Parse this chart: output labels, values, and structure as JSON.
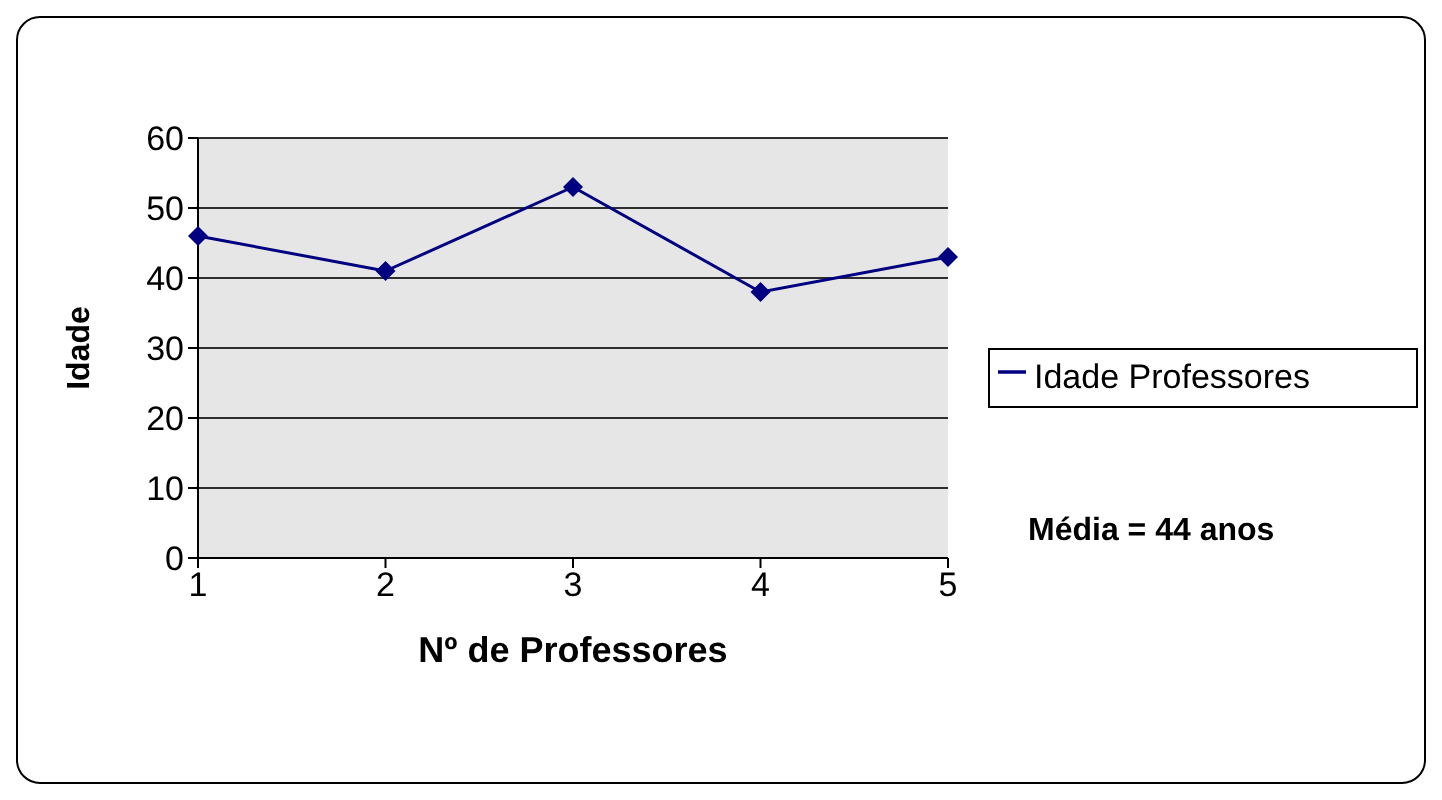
{
  "chart_data": {
    "type": "line",
    "xlabel": "Nº de Professores",
    "ylabel": "Idade",
    "categories": [
      "1",
      "2",
      "3",
      "4",
      "5"
    ],
    "series": [
      {
        "name": "Idade Professores",
        "color": "#000080",
        "values": [
          46,
          41,
          53,
          38,
          43
        ]
      }
    ],
    "ylim": [
      0,
      60
    ],
    "yticks": [
      0,
      10,
      20,
      30,
      40,
      50,
      60
    ],
    "grid": "y",
    "legend": "right",
    "marker": "diamond",
    "line_style": "solid",
    "annotations": [
      "Média = 44 anos"
    ]
  }
}
